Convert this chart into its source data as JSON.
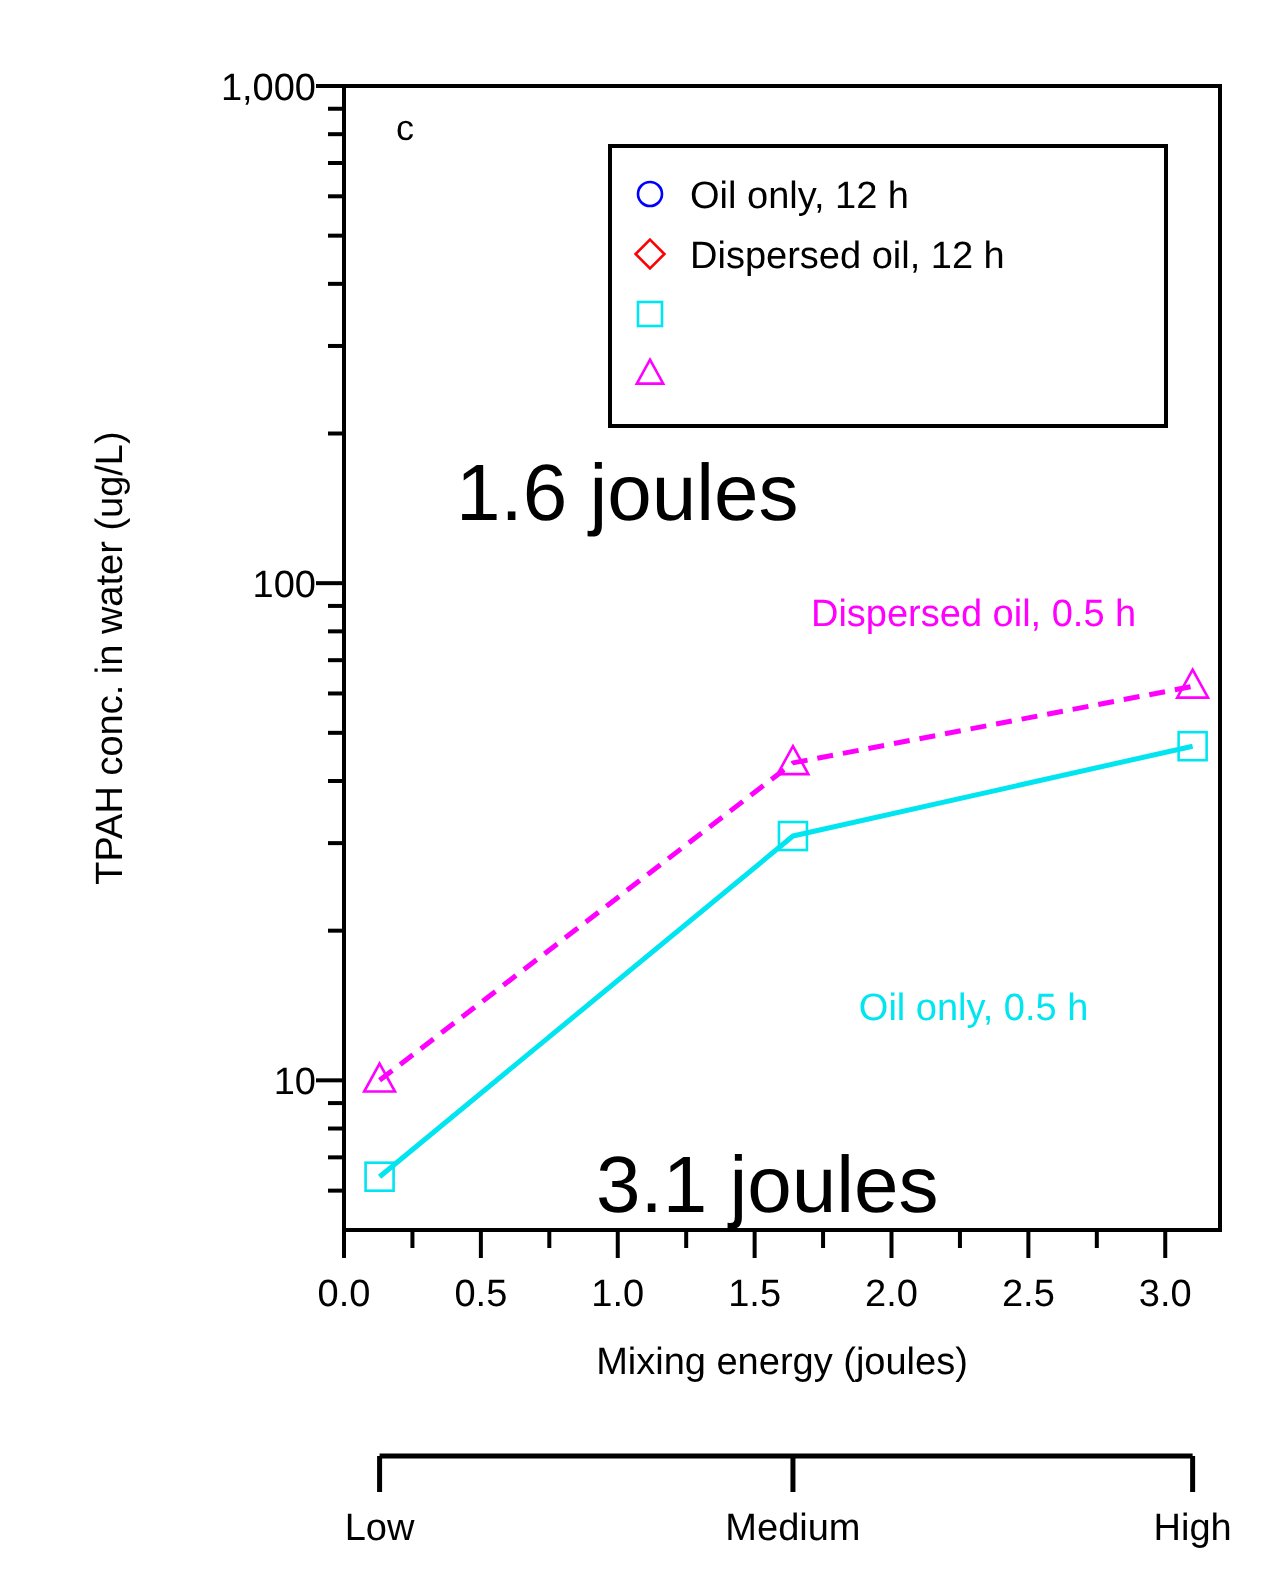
{
  "chart_data": {
    "type": "line",
    "xlabel": "Mixing energy (joules)",
    "ylabel": "TPAH conc. in water (ug/L)",
    "log": "y",
    "xlim": [
      0,
      3.2
    ],
    "ylim": [
      5,
      1000
    ],
    "xticks": [
      {
        "value": 0,
        "label": "0.0"
      },
      {
        "value": 0.25,
        "label": null
      },
      {
        "value": 0.5,
        "label": "0.5"
      },
      {
        "value": 0.75,
        "label": null
      },
      {
        "value": 1,
        "label": "1.0"
      },
      {
        "value": 1.25,
        "label": null
      },
      {
        "value": 1.5,
        "label": "1.5"
      },
      {
        "value": 1.75,
        "label": null
      },
      {
        "value": 2,
        "label": "2.0"
      },
      {
        "value": 2.25,
        "label": null
      },
      {
        "value": 2.5,
        "label": "2.5"
      },
      {
        "value": 2.75,
        "label": null
      },
      {
        "value": 3,
        "label": "3.0"
      }
    ],
    "yticks": [
      {
        "value": 6,
        "label": null
      },
      {
        "value": 7,
        "label": null
      },
      {
        "value": 8,
        "label": null
      },
      {
        "value": 9,
        "label": null
      },
      10,
      {
        "value": 20,
        "label": null
      },
      {
        "value": 30,
        "label": null
      },
      {
        "value": 40,
        "label": null
      },
      {
        "value": 50,
        "label": null
      },
      {
        "value": 60,
        "label": null
      },
      {
        "value": 70,
        "label": null
      },
      {
        "value": 80,
        "label": null
      },
      {
        "value": 90,
        "label": null
      },
      100,
      {
        "value": 200,
        "label": null
      },
      {
        "value": 300,
        "label": null
      },
      {
        "value": 400,
        "label": null
      },
      {
        "value": 500,
        "label": null
      },
      {
        "value": 600,
        "label": null
      },
      {
        "value": 700,
        "label": null
      },
      {
        "value": 800,
        "label": null
      },
      {
        "value": 900,
        "label": null
      },
      {
        "value": 1000,
        "label": "1,000"
      }
    ],
    "x": [
      0.13,
      1.64,
      3.1
    ],
    "series": [
      {
        "name": "Oil only, 12 h",
        "color": "#0000ff",
        "marker": "circle",
        "values": [
          null,
          null,
          null
        ]
      },
      {
        "name": "Dispersed oil, 12 h",
        "color": "#ff0000",
        "marker": "diamond",
        "values": [
          null,
          null,
          null
        ]
      },
      {
        "name": "Oil only, 0.5 h",
        "color": "#00e5f0",
        "marker": "square",
        "line_style": "solid",
        "values": [
          6.4,
          31,
          47
        ]
      },
      {
        "name": "Dispersed oil, 0.5 h",
        "color": "#ff00ff",
        "marker": "triangle",
        "line_style": "dashed",
        "values": [
          10,
          43.5,
          62
        ]
      }
    ],
    "legend": "top right",
    "annotations": [
      "c",
      "1.6 joules",
      "3.1 joules",
      {
        "text": "Low",
        "x": 0.13
      },
      {
        "text": "Medium",
        "x": 1.64
      },
      {
        "text": "High",
        "x": 3.1
      }
    ]
  }
}
